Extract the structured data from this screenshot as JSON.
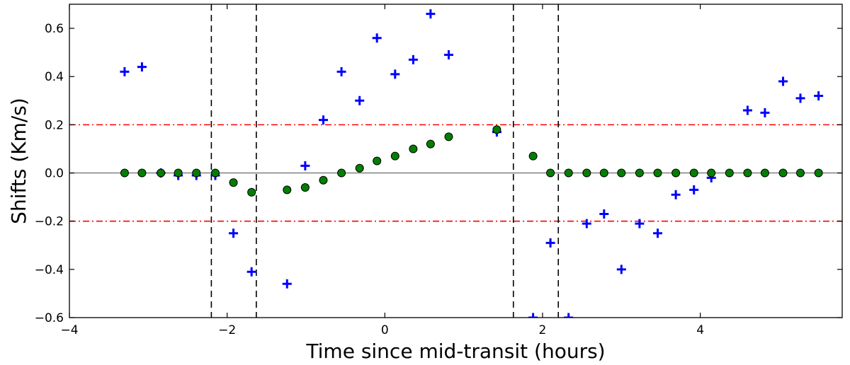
{
  "chart_data": {
    "type": "scatter",
    "xlabel": "Time since mid-transit (hours)",
    "ylabel": "Shifts (Km/s)",
    "xlim": [
      -4,
      5.8
    ],
    "ylim": [
      -0.6,
      0.7
    ],
    "xticks": [
      -4,
      -2,
      0,
      2,
      4
    ],
    "yticks": [
      -0.6,
      -0.4,
      -0.2,
      0.0,
      0.2,
      0.4,
      0.6
    ],
    "xtick_labels": [
      "−4",
      "−2",
      "0",
      "2",
      "4"
    ],
    "ytick_labels": [
      "−0.6",
      "−0.4",
      "−0.2",
      "0.0",
      "0.2",
      "0.4",
      "0.6"
    ],
    "grid": false,
    "vertical_dashed_lines": [
      -2.2,
      -1.63,
      1.63,
      2.2
    ],
    "horizontal_dashdot_lines": [
      0.2,
      -0.2
    ],
    "zero_line": 0.0,
    "colors": {
      "plus": "#0000ff",
      "circle_fill": "#007f00",
      "circle_edge": "#000000",
      "dashed": "#000000",
      "dashdot": "#ff0000",
      "zero": "#808080"
    },
    "series": [
      {
        "marker": "plus",
        "x": [
          -3.3,
          -3.08,
          -2.84,
          -2.62,
          -2.39,
          -2.15,
          -1.92,
          -1.69,
          -1.24,
          -1.01,
          -0.78,
          -0.55,
          -0.32,
          -0.1,
          0.13,
          0.36,
          0.58,
          0.81,
          1.42,
          1.88,
          2.1,
          2.33,
          2.56,
          2.78,
          3.0,
          3.23,
          3.46,
          3.69,
          3.92,
          4.14,
          4.6,
          4.82,
          5.05,
          5.27,
          5.5
        ],
        "y": [
          0.42,
          0.44,
          0.0,
          -0.01,
          -0.01,
          -0.01,
          -0.25,
          -0.41,
          -0.46,
          0.03,
          0.22,
          0.42,
          0.3,
          0.56,
          0.41,
          0.47,
          0.66,
          0.49,
          0.17,
          -0.6,
          -0.29,
          -0.6,
          -0.21,
          -0.17,
          -0.4,
          -0.21,
          -0.25,
          -0.09,
          -0.07,
          -0.02,
          0.26,
          0.25,
          0.38,
          0.31,
          0.32
        ]
      },
      {
        "marker": "circle",
        "x": [
          -3.3,
          -3.08,
          -2.84,
          -2.62,
          -2.39,
          -2.15,
          -1.92,
          -1.69,
          -1.24,
          -1.01,
          -0.78,
          -0.55,
          -0.32,
          -0.1,
          0.13,
          0.36,
          0.58,
          0.81,
          1.42,
          1.88,
          2.1,
          2.33,
          2.56,
          2.78,
          3.0,
          3.23,
          3.46,
          3.69,
          3.92,
          4.14,
          4.37,
          4.6,
          4.82,
          5.05,
          5.27,
          5.5
        ],
        "y": [
          0.0,
          0.0,
          0.0,
          0.0,
          0.0,
          0.0,
          -0.04,
          -0.08,
          -0.07,
          -0.06,
          -0.03,
          0.0,
          0.02,
          0.05,
          0.07,
          0.1,
          0.12,
          0.15,
          0.18,
          0.07,
          0.0,
          0.0,
          0.0,
          0.0,
          0.0,
          0.0,
          0.0,
          0.0,
          0.0,
          0.0,
          0.0,
          0.0,
          0.0,
          0.0,
          0.0,
          0.0
        ]
      }
    ]
  }
}
